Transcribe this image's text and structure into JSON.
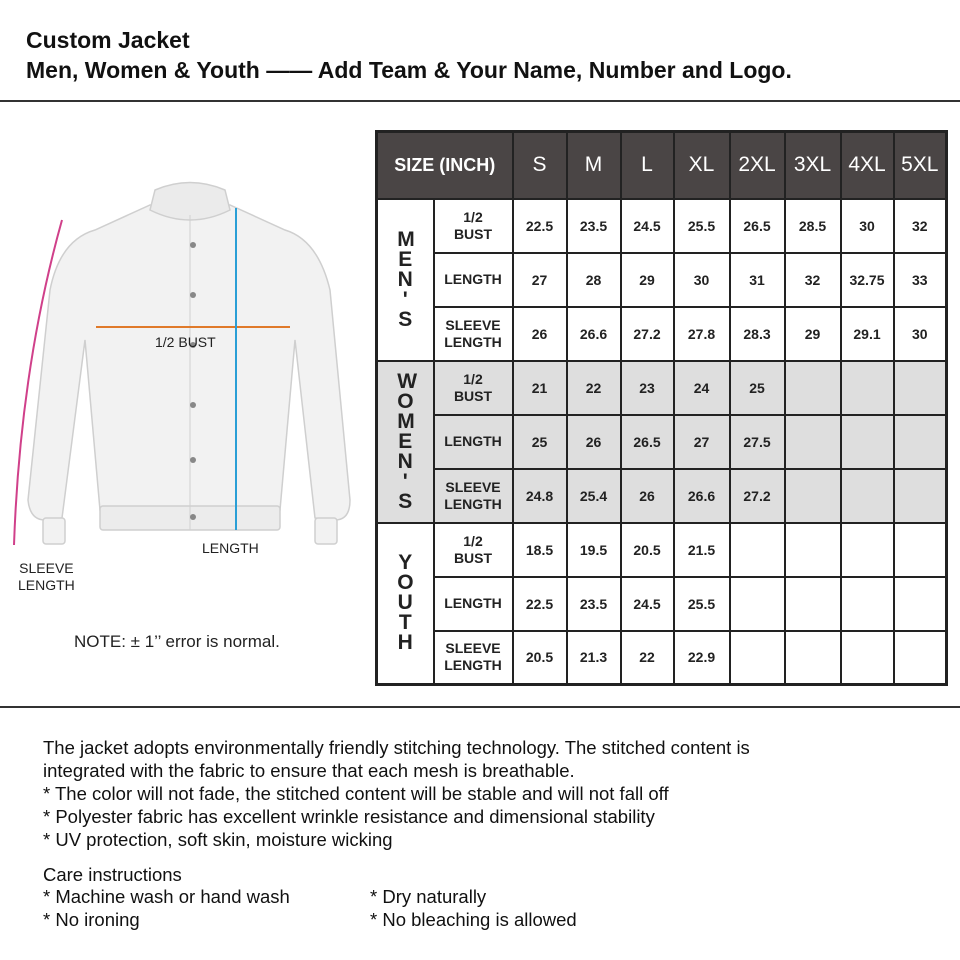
{
  "header": {
    "line1": "Custom Jacket",
    "line2": "Men, Women & Youth —— Add Team & Your Name, Number and Logo."
  },
  "diagram": {
    "bust_label": "1/2 BUST",
    "length_label": "LENGTH",
    "sleeve_label_1": "SLEEVE",
    "sleeve_label_2": "LENGTH",
    "note": "NOTE: ± 1’’ error is normal.",
    "colors": {
      "bust": "#e07a2a",
      "length": "#2a9fd6",
      "sleeve": "#d0408a"
    }
  },
  "table": {
    "corner": "SIZE (INCH)",
    "sizes": [
      "S",
      "M",
      "L",
      "XL",
      "2XL",
      "3XL",
      "4XL",
      "5XL"
    ],
    "groups": [
      {
        "name": "MEN'S",
        "letters": [
          "M",
          "E",
          "N",
          "'",
          "S"
        ],
        "rows": [
          {
            "label": "1/2 BUST",
            "values": [
              "22.5",
              "23.5",
              "24.5",
              "25.5",
              "26.5",
              "28.5",
              "30",
              "32"
            ]
          },
          {
            "label": "LENGTH",
            "values": [
              "27",
              "28",
              "29",
              "30",
              "31",
              "32",
              "32.75",
              "33"
            ]
          },
          {
            "label": "SLEEVE LENGTH",
            "values": [
              "26",
              "26.6",
              "27.2",
              "27.8",
              "28.3",
              "29",
              "29.1",
              "30"
            ]
          }
        ]
      },
      {
        "name": "WOMEN'S",
        "letters": [
          "W",
          "O",
          "M",
          "E",
          "N",
          "'",
          "S"
        ],
        "rows": [
          {
            "label": "1/2 BUST",
            "values": [
              "21",
              "22",
              "23",
              "24",
              "25",
              "",
              "",
              ""
            ]
          },
          {
            "label": "LENGTH",
            "values": [
              "25",
              "26",
              "26.5",
              "27",
              "27.5",
              "",
              "",
              ""
            ]
          },
          {
            "label": "SLEEVE LENGTH",
            "values": [
              "24.8",
              "25.4",
              "26",
              "26.6",
              "27.2",
              "",
              "",
              ""
            ]
          }
        ]
      },
      {
        "name": "YOUTH",
        "letters": [
          "Y",
          "O",
          "U",
          "T",
          "H"
        ],
        "rows": [
          {
            "label": "1/2 BUST",
            "values": [
              "18.5",
              "19.5",
              "20.5",
              "21.5",
              "",
              "",
              "",
              ""
            ]
          },
          {
            "label": "LENGTH",
            "values": [
              "22.5",
              "23.5",
              "24.5",
              "25.5",
              "",
              "",
              "",
              ""
            ]
          },
          {
            "label": "SLEEVE LENGTH",
            "values": [
              "20.5",
              "21.3",
              "22",
              "22.9",
              "",
              "",
              "",
              ""
            ]
          }
        ]
      }
    ]
  },
  "description": {
    "lines": [
      "The jacket adopts environmentally friendly stitching technology. The stitched content is",
      "integrated with the fabric to ensure that each mesh is breathable.",
      "* The color will not fade, the stitched content will be stable and will not fall off",
      "* Polyester fabric has excellent wrinkle resistance and dimensional stability",
      "* UV protection, soft skin, moisture wicking"
    ],
    "care_title": "Care instructions",
    "care_left": [
      "* Machine wash or hand wash",
      "* No ironing"
    ],
    "care_right": [
      "* Dry naturally",
      "* No bleaching is allowed"
    ]
  }
}
